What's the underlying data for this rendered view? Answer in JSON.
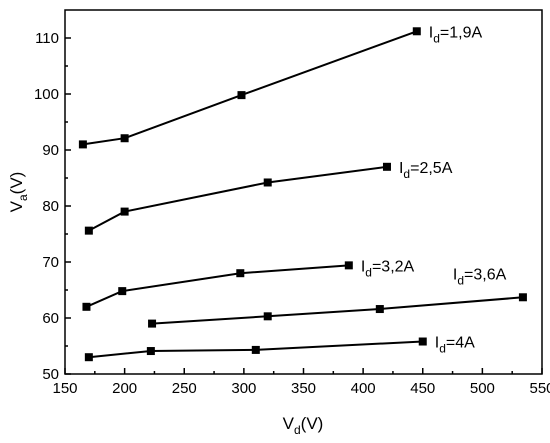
{
  "chart_data": {
    "type": "line",
    "xlabel": {
      "main": "V",
      "sub": "d",
      "unit": "(V)"
    },
    "ylabel": {
      "main": "V",
      "sub": "a",
      "unit": "(V)"
    },
    "xlim": [
      150,
      550
    ],
    "ylim": [
      50,
      115
    ],
    "xticks": [
      150,
      200,
      250,
      300,
      350,
      400,
      450,
      500,
      550
    ],
    "yticks": [
      50,
      60,
      70,
      80,
      90,
      100,
      110
    ],
    "grid": false,
    "legend": "none",
    "series": [
      {
        "label": {
          "main": "I",
          "sub": "d",
          "value": "=1,9A"
        },
        "x": [
          165,
          200,
          298,
          445
        ],
        "y": [
          91.0,
          92.1,
          99.8,
          111.2
        ]
      },
      {
        "label": {
          "main": "I",
          "sub": "d",
          "value": "=2,5A"
        },
        "x": [
          170,
          200,
          320,
          420
        ],
        "y": [
          75.6,
          79.0,
          84.2,
          87.0
        ]
      },
      {
        "label": {
          "main": "I",
          "sub": "d",
          "value": "=3,2A"
        },
        "x": [
          168,
          198,
          297,
          388
        ],
        "y": [
          62.0,
          64.8,
          68.0,
          69.4
        ]
      },
      {
        "label": {
          "main": "I",
          "sub": "d",
          "value": "=3,6A"
        },
        "x": [
          223,
          320,
          414,
          534
        ],
        "y": [
          59.0,
          60.3,
          61.6,
          63.7
        ]
      },
      {
        "label": {
          "main": "I",
          "sub": "d",
          "value": "=4A"
        },
        "x": [
          170,
          222,
          310,
          450
        ],
        "y": [
          53.0,
          54.1,
          54.3,
          55.8
        ]
      }
    ]
  }
}
